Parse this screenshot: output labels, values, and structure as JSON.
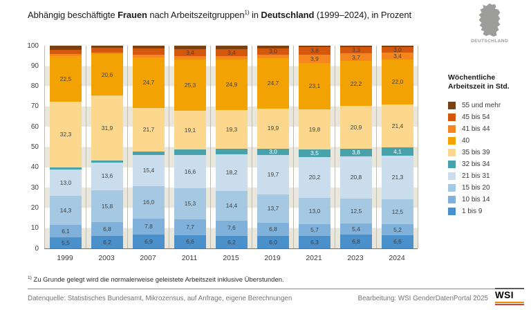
{
  "header": {
    "title_parts": [
      {
        "t": "Abhängig beschäftigte ",
        "style": "normal"
      },
      {
        "t": "Frauen",
        "style": "bold"
      },
      {
        "t": " nach Arbeitszeitgruppen",
        "style": "normal"
      },
      {
        "t": "1)",
        "style": "sup"
      },
      {
        "t": " in ",
        "style": "normal"
      },
      {
        "t": "Deutschland",
        "style": "bold"
      },
      {
        "t": " (1999–2024), in Prozent",
        "style": "normal"
      }
    ],
    "map_label": "DEUTSCHLAND"
  },
  "legend": {
    "title_line1": "Wöchentliche",
    "title_line2": "Arbeitszeit in Std.",
    "position": "right",
    "items": [
      {
        "label": "55 und mehr",
        "color": "#7c4111"
      },
      {
        "label": "45 bis 54",
        "color": "#d4570e"
      },
      {
        "label": "41 bis 44",
        "color": "#f5861f"
      },
      {
        "label": "40",
        "color": "#f3a204"
      },
      {
        "label": "35 bis 39",
        "color": "#fbd88d"
      },
      {
        "label": "32 bis 34",
        "color": "#48a2ac"
      },
      {
        "label": "21 bis 31",
        "color": "#c9ddec"
      },
      {
        "label": "15 bis 20",
        "color": "#a6c9e3"
      },
      {
        "label": "10 bis 14",
        "color": "#7fb1da"
      },
      {
        "label": "1 bis 9",
        "color": "#4a90cb"
      }
    ]
  },
  "chart_data": {
    "type": "bar",
    "stacked": true,
    "title": "Abhängig beschäftigte Frauen nach Arbeitszeitgruppen in Deutschland (1999–2024), in Prozent",
    "xlabel": "",
    "ylabel": "Prozent",
    "ylim": [
      0,
      100
    ],
    "yticks": [
      0,
      10,
      20,
      30,
      40,
      50,
      60,
      70,
      80,
      90,
      100
    ],
    "grid": "horizontal-stripes",
    "categories": [
      "1999",
      "2003",
      "2007",
      "2011",
      "2015",
      "2019",
      "2021",
      "2023",
      "2024"
    ],
    "series": [
      {
        "name": "1 bis 9",
        "color": "#4a90cb",
        "label_color": "#3f3f3f",
        "values": [
          5.5,
          6.2,
          6.9,
          6.6,
          6.2,
          6.0,
          6.3,
          6.8,
          6.6
        ],
        "labels": [
          "5,5",
          "6,2",
          "6,9",
          "6,6",
          "6,2",
          "6,0",
          "6,3",
          "6,8",
          "6,6"
        ]
      },
      {
        "name": "10 bis 14",
        "color": "#7fb1da",
        "label_color": "#3f3f3f",
        "values": [
          6.1,
          6.8,
          7.8,
          7.7,
          7.6,
          6.8,
          5.7,
          5.4,
          5.2
        ],
        "labels": [
          "6,1",
          "6,8",
          "7,8",
          "7,7",
          "7,6",
          "6,8",
          "5,7",
          "5,4",
          "5,2"
        ]
      },
      {
        "name": "15 bis 20",
        "color": "#a6c9e3",
        "label_color": "#3f3f3f",
        "values": [
          14.3,
          15.8,
          16.0,
          15.3,
          14.4,
          13.7,
          13.0,
          12.5,
          12.5
        ],
        "labels": [
          "14,3",
          "15,8",
          "16,0",
          "15,3",
          "14,4",
          "13,7",
          "13,0",
          "12,5",
          "12,5"
        ]
      },
      {
        "name": "21 bis 31",
        "color": "#c9ddec",
        "label_color": "#3f3f3f",
        "values": [
          13.0,
          13.6,
          15.4,
          16.6,
          18.2,
          19.7,
          20.2,
          20.8,
          21.3
        ],
        "labels": [
          "13,0",
          "13,6",
          "15,4",
          "16,6",
          "18,2",
          "19,7",
          "20,2",
          "20,8",
          "21,3"
        ]
      },
      {
        "name": "32 bis 34",
        "color": "#48a2ac",
        "label_color": "#ffffff",
        "values": [
          1.1,
          1.1,
          1.6,
          2.6,
          2.7,
          3.0,
          3.5,
          3.8,
          4.1
        ],
        "labels": [
          null,
          null,
          null,
          null,
          null,
          "3,0",
          "3,5",
          "3,8",
          "4,1"
        ]
      },
      {
        "name": "35 bis 39",
        "color": "#fbd88d",
        "label_color": "#3f3f3f",
        "values": [
          32.3,
          31.9,
          21.7,
          19.1,
          19.3,
          19.9,
          19.8,
          20.9,
          21.4
        ],
        "labels": [
          "32,3",
          "31,9",
          "21,7",
          "19,1",
          "19,3",
          "19,9",
          "19,8",
          "20,9",
          "21,4"
        ]
      },
      {
        "name": "40",
        "color": "#f3a204",
        "label_color": "#3f3f3f",
        "values": [
          22.5,
          20.6,
          24.7,
          25.3,
          24.9,
          24.7,
          23.1,
          22.2,
          22.0
        ],
        "labels": [
          "22,5",
          "20,6",
          "24,7",
          "25,3",
          "24,9",
          "24,7",
          "23,1",
          "22,2",
          "22,0"
        ]
      },
      {
        "name": "41 bis 44",
        "color": "#f5861f",
        "label_color": "#3f3f3f",
        "values": [
          1.0,
          0.7,
          1.5,
          1.6,
          1.5,
          1.8,
          3.9,
          3.7,
          3.4
        ],
        "labels": [
          null,
          null,
          null,
          null,
          null,
          null,
          "3,9",
          "3,7",
          "3,4"
        ]
      },
      {
        "name": "45 bis 54",
        "color": "#d4570e",
        "label_color": "#3f3f3f",
        "values": [
          2.2,
          2.4,
          2.9,
          3.4,
          3.4,
          3.0,
          3.8,
          3.3,
          3.0
        ],
        "labels": [
          null,
          null,
          null,
          "3,4",
          "3,4",
          "3,0",
          "3,8",
          "3,3",
          "3,0"
        ]
      },
      {
        "name": "55 und mehr",
        "color": "#7c4111",
        "label_color": "#3f3f3f",
        "values": [
          2.0,
          0.9,
          1.5,
          1.8,
          1.8,
          1.4,
          0.7,
          0.6,
          0.5
        ],
        "labels": [
          null,
          null,
          null,
          null,
          null,
          null,
          null,
          null,
          null
        ]
      }
    ]
  },
  "footnote": {
    "sup": "1)",
    "text": " Zu Grunde gelegt wird die normalerweise geleistete Arbeitszeit inklusive Überstunden."
  },
  "footer": {
    "source": "Datenquelle: Statistisches Bundesamt, Mikrozensus, auf Anfrage, eigene Berechnungen",
    "editing": "Bearbeitung: WSI GenderDatenPortal 2025",
    "logo_text": "WSI"
  }
}
